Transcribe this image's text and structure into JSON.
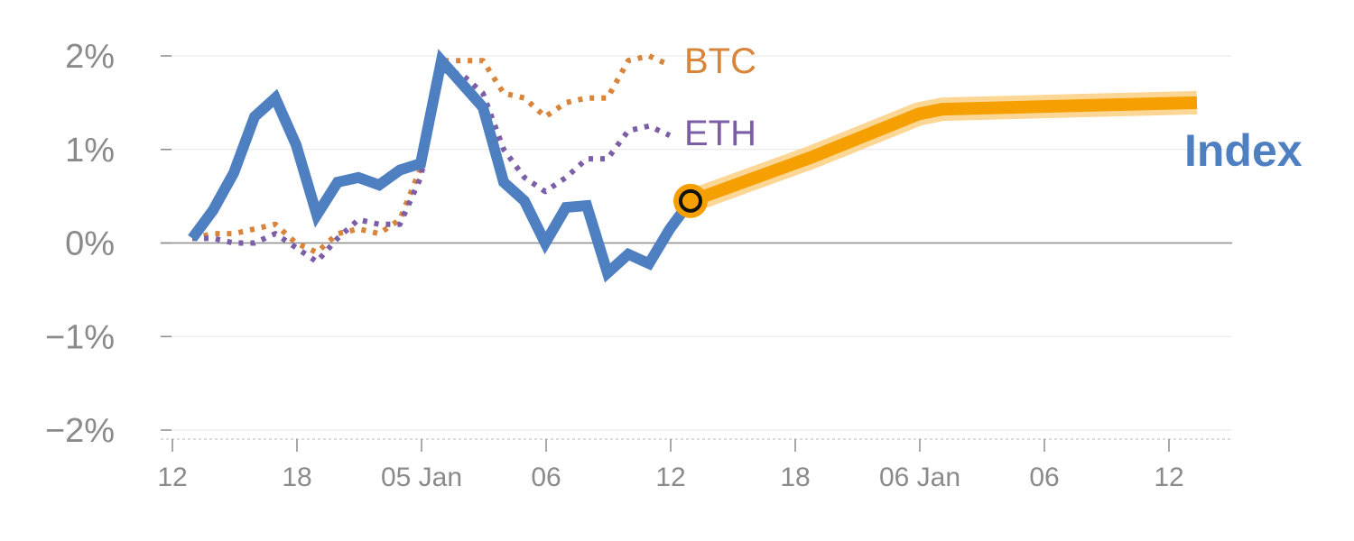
{
  "chart_data": {
    "type": "line",
    "title": "",
    "xlabel": "",
    "ylabel": "",
    "ylim": [
      -2,
      2
    ],
    "y_tick_values": [
      2,
      1,
      0,
      -1,
      -2
    ],
    "y_tick_labels": [
      "2%",
      "1%",
      "0%",
      "−1%",
      "−2%"
    ],
    "x_tick_labels": [
      "12",
      "18",
      "05 Jan",
      "06",
      "12",
      "18",
      "06 Jan",
      "06",
      "12"
    ],
    "grid": true,
    "series": [
      {
        "name": "BTC",
        "color": "#d9843b",
        "style": "dotted",
        "values": [
          0.05,
          0.1,
          0.1,
          0.15,
          0.2,
          0.0,
          -0.1,
          0.1,
          0.15,
          0.1,
          0.25,
          0.8,
          1.95,
          1.95,
          1.95,
          1.6,
          1.55,
          1.35,
          1.5,
          1.55,
          1.55,
          1.95,
          2.0,
          1.9
        ]
      },
      {
        "name": "ETH",
        "color": "#7b5ea7",
        "style": "dotted",
        "values": [
          0.05,
          0.05,
          0.0,
          0.0,
          0.1,
          -0.05,
          -0.2,
          0.05,
          0.25,
          0.2,
          0.2,
          0.7,
          1.85,
          1.8,
          1.6,
          1.0,
          0.7,
          0.55,
          0.7,
          0.9,
          0.9,
          1.2,
          1.25,
          1.15
        ]
      },
      {
        "name": "Index",
        "color": "#4e7fc1",
        "style": "solid",
        "values": [
          0.05,
          0.35,
          0.75,
          1.35,
          1.55,
          1.05,
          0.3,
          0.65,
          0.7,
          0.62,
          0.78,
          0.85,
          1.95,
          1.7,
          1.45,
          0.65,
          0.45,
          0.0,
          0.38,
          0.4,
          -0.32,
          -0.12,
          -0.22,
          0.15,
          0.45
        ]
      }
    ],
    "forecast": {
      "series": "Index",
      "color": "#f5a000",
      "start_index": 24,
      "values": [
        0.45,
        0.92,
        1.38,
        1.43,
        1.47,
        1.5
      ]
    },
    "marker": {
      "index": 24,
      "value": 0.45
    }
  }
}
